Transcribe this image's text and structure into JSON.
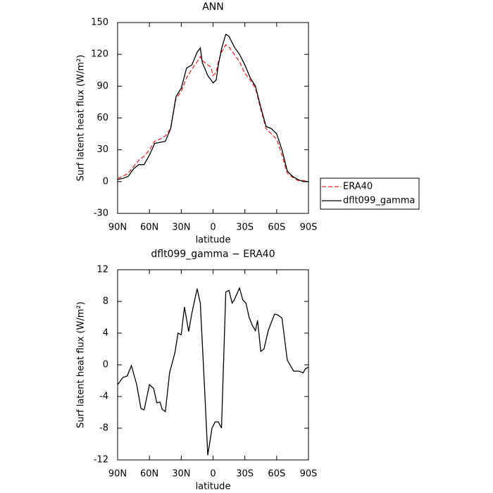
{
  "chart_data": [
    {
      "type": "line",
      "title": "ANN",
      "xlabel": "latitude",
      "ylabel": "Surf latent heat flux (W/m²)",
      "x": [
        90,
        85,
        80,
        75,
        70,
        65,
        60,
        55,
        50,
        45,
        40,
        35,
        30,
        25,
        20,
        15,
        12,
        10,
        5,
        2,
        0,
        -3,
        -5,
        -8,
        -12,
        -15,
        -20,
        -25,
        -30,
        -35,
        -40,
        -45,
        -50,
        -55,
        -60,
        -65,
        -70,
        -75,
        -80,
        -85,
        -90
      ],
      "xlim": [
        90,
        -90
      ],
      "xticks": [
        {
          "value": 90,
          "label": "90N"
        },
        {
          "value": 60,
          "label": "60N"
        },
        {
          "value": 30,
          "label": "30N"
        },
        0,
        {
          "value": -30,
          "label": "30S"
        },
        {
          "value": -60,
          "label": "60S"
        },
        {
          "value": -90,
          "label": "90S"
        }
      ],
      "ylim": [
        -30,
        150
      ],
      "yticks": [
        -30,
        0,
        30,
        60,
        90,
        120,
        150
      ],
      "legend": "right-outside",
      "series": [
        {
          "name": "ERA40",
          "color": "#e8242c",
          "dash": "dashed",
          "values": [
            3,
            5,
            8,
            14,
            20,
            24,
            30,
            38,
            40,
            43,
            50,
            78,
            85,
            98,
            106,
            113,
            118,
            114,
            110,
            108,
            100,
            103,
            113,
            122,
            129,
            127,
            120,
            113,
            102,
            96,
            88,
            68,
            50,
            45,
            40,
            25,
            8,
            4,
            1,
            1,
            0
          ]
        },
        {
          "name": "dflt099_gamma",
          "color": "#000000",
          "dash": "solid",
          "values": [
            2,
            3,
            5,
            12,
            16,
            16,
            25,
            36,
            37,
            38,
            50,
            80,
            88,
            107,
            110,
            122,
            126,
            112,
            100,
            96,
            93,
            96,
            110,
            125,
            139,
            137,
            127,
            120,
            110,
            98,
            90,
            70,
            52,
            50,
            45,
            30,
            10,
            5,
            2,
            0,
            0
          ]
        }
      ]
    },
    {
      "type": "line",
      "title": "dflt099_gamma − ERA40",
      "xlabel": "latitude",
      "ylabel": "Surf latent heat flux (W/m²)",
      "x": [
        90,
        85,
        81,
        77,
        72,
        68,
        65,
        60,
        56,
        53,
        50,
        48,
        45,
        41,
        36,
        33,
        30,
        27,
        23,
        20,
        15,
        12,
        8,
        5,
        1,
        -2,
        -5,
        -8,
        -12,
        -15,
        -18,
        -20,
        -25,
        -28,
        -31,
        -34,
        -37,
        -40,
        -42,
        -45,
        -48,
        -52,
        -58,
        -61,
        -65,
        -70,
        -76,
        -81,
        -85,
        -87,
        -90
      ],
      "xlim": [
        90,
        -90
      ],
      "xticks": [
        {
          "value": 90,
          "label": "90N"
        },
        {
          "value": 60,
          "label": "60N"
        },
        {
          "value": 30,
          "label": "30N"
        },
        0,
        {
          "value": -30,
          "label": "30S"
        },
        {
          "value": -60,
          "label": "60S"
        },
        {
          "value": -90,
          "label": "90S"
        }
      ],
      "ylim": [
        -12,
        12
      ],
      "yticks": [
        -12,
        -8,
        -4,
        0,
        4,
        8,
        12
      ],
      "series": [
        {
          "color": "#000000",
          "dash": "solid",
          "values": [
            -2.5,
            -1.6,
            -1.4,
            -0.1,
            -2.5,
            -5.5,
            -5.7,
            -2.5,
            -3,
            -4.8,
            -4.7,
            -5.6,
            -5.9,
            -1,
            1.5,
            4,
            3.8,
            7.3,
            4.2,
            6.5,
            9.6,
            7.8,
            -3,
            -11.4,
            -8,
            -7.2,
            -7.2,
            -8,
            9.2,
            9.4,
            7.8,
            8.2,
            9.7,
            8.2,
            7.8,
            6,
            5,
            4.3,
            5.6,
            1.7,
            2,
            4.3,
            6.4,
            6.3,
            5.9,
            0.6,
            -0.8,
            -0.8,
            -1,
            -0.5,
            -0.3
          ]
        }
      ]
    }
  ]
}
